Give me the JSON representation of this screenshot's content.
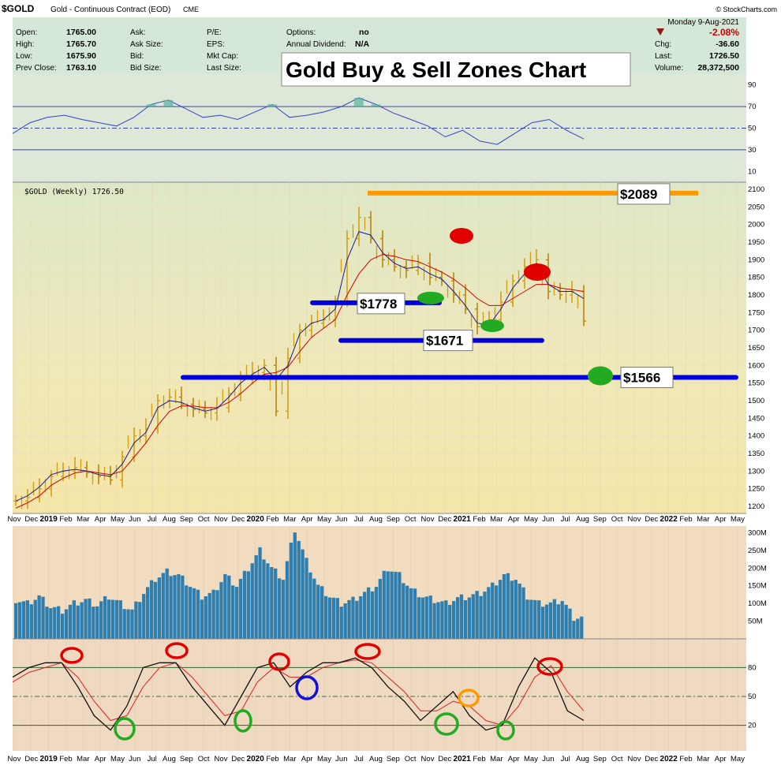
{
  "header": {
    "symbol": "$GOLD",
    "name": "Gold - Continuous Contract (EOD)",
    "exchange": "CME",
    "watermark": "© StockCharts.com",
    "date": "Monday  9-Aug-2021",
    "quote": [
      {
        "label": "Open:",
        "value": "1765.00"
      },
      {
        "label": "High:",
        "value": "1765.70"
      },
      {
        "label": "Low:",
        "value": "1675.90"
      },
      {
        "label": "Prev Close:",
        "value": "1763.10"
      }
    ],
    "quote2": [
      {
        "label": "Ask:"
      },
      {
        "label": "Ask Size:"
      },
      {
        "label": "Bid:"
      },
      {
        "label": "Bid Size:"
      }
    ],
    "quote3": [
      {
        "label": "P/E:"
      },
      {
        "label": "EPS:"
      },
      {
        "label": "Mkt Cap:"
      },
      {
        "label": "Last Size:"
      }
    ],
    "quote4": [
      {
        "label": "Options:",
        "value": "no"
      },
      {
        "label": "Annual Dividend:",
        "value": "N/A"
      }
    ],
    "change_pct": "-2.08%",
    "chg_label": "Chg:",
    "chg_value": "-36.60",
    "last_label": "Last:",
    "last_value": "1726.50",
    "volume_label": "Volume:",
    "volume_value": "28,372,500"
  },
  "overlay_title": "Gold Buy & Sell Zones Chart",
  "price_legend": "$GOLD (Weekly) 1726.50",
  "colors": {
    "up": "#d4a017",
    "down": "#b8860b",
    "ma_fast": "#1a1a8c",
    "ma_slow": "#d40000",
    "buy": "#22aa22",
    "sell": "#e00000",
    "zone": "#0000dd",
    "top": "#ff9900",
    "volume": "#2e7fb0"
  },
  "chart_data": [
    {
      "type": "line",
      "panel": "rsi",
      "ylim": [
        0,
        100
      ],
      "y_ticks": [
        "90",
        "70",
        "50",
        "30",
        "10"
      ],
      "reference_levels": [
        70,
        50,
        30
      ],
      "x": [
        "Nov 2018",
        "Dec",
        "Jan 2019",
        "Feb",
        "Mar",
        "Apr",
        "May",
        "Jun",
        "Jul",
        "Aug",
        "Sep",
        "Oct",
        "Nov",
        "Dec",
        "Jan 2020",
        "Feb",
        "Mar",
        "Apr",
        "May",
        "Jun",
        "Jul",
        "Aug",
        "Sep",
        "Oct",
        "Nov",
        "Dec",
        "Jan 2021",
        "Feb",
        "Mar",
        "Apr",
        "May",
        "Jun",
        "Jul",
        "Aug"
      ],
      "values": [
        45,
        55,
        60,
        62,
        58,
        55,
        52,
        60,
        72,
        76,
        68,
        60,
        62,
        58,
        65,
        72,
        60,
        62,
        65,
        70,
        78,
        72,
        64,
        58,
        52,
        42,
        48,
        38,
        35,
        45,
        55,
        58,
        48,
        40
      ]
    },
    {
      "type": "candlestick",
      "panel": "price",
      "title": "$GOLD (Weekly) 1726.50",
      "ylim": [
        1180,
        2110
      ],
      "y_ticks": [
        "2100",
        "2050",
        "2000",
        "1950",
        "1900",
        "1850",
        "1800",
        "1750",
        "1700",
        "1650",
        "1600",
        "1550",
        "1500",
        "1450",
        "1400",
        "1350",
        "1300",
        "1250",
        "1200"
      ],
      "x_ticks": [
        "Nov",
        "Dec",
        "2019",
        "Feb",
        "Mar",
        "Apr",
        "May",
        "Jun",
        "Jul",
        "Aug",
        "Sep",
        "Oct",
        "Nov",
        "Dec",
        "2020",
        "Feb",
        "Mar",
        "Apr",
        "May",
        "Jun",
        "Jul",
        "Aug",
        "Sep",
        "Oct",
        "Nov",
        "Dec",
        "2021",
        "Feb",
        "Mar",
        "Apr",
        "May",
        "Jun",
        "Jul",
        "Aug",
        "Sep",
        "Oct",
        "Nov",
        "Dec",
        "2022",
        "Feb",
        "Mar",
        "Apr",
        "May"
      ],
      "x_ticks_bold": [
        "2019",
        "2020",
        "2021",
        "2022"
      ],
      "close": [
        1215,
        1225,
        1250,
        1285,
        1300,
        1310,
        1295,
        1285,
        1275,
        1340,
        1400,
        1420,
        1500,
        1510,
        1490,
        1475,
        1465,
        1480,
        1520,
        1560,
        1580,
        1600,
        1470,
        1620,
        1700,
        1720,
        1730,
        1780,
        1960,
        2020,
        1960,
        1900,
        1880,
        1870,
        1890,
        1850,
        1840,
        1800,
        1760,
        1710,
        1730,
        1780,
        1840,
        1880,
        1900,
        1810,
        1800,
        1810,
        1726
      ],
      "sma_fast": [
        1215,
        1230,
        1255,
        1290,
        1300,
        1305,
        1300,
        1290,
        1285,
        1320,
        1380,
        1410,
        1480,
        1500,
        1495,
        1480,
        1470,
        1478,
        1510,
        1550,
        1575,
        1595,
        1560,
        1600,
        1690,
        1720,
        1730,
        1760,
        1900,
        1980,
        1970,
        1920,
        1890,
        1875,
        1880,
        1860,
        1845,
        1810,
        1770,
        1720,
        1715,
        1760,
        1820,
        1860,
        1890,
        1830,
        1810,
        1810,
        1790
      ],
      "sma_slow": [
        1195,
        1210,
        1230,
        1260,
        1280,
        1295,
        1300,
        1295,
        1290,
        1300,
        1340,
        1380,
        1430,
        1470,
        1485,
        1485,
        1480,
        1480,
        1495,
        1520,
        1550,
        1575,
        1580,
        1595,
        1640,
        1680,
        1705,
        1730,
        1800,
        1860,
        1900,
        1915,
        1910,
        1900,
        1895,
        1880,
        1865,
        1845,
        1820,
        1790,
        1770,
        1770,
        1790,
        1810,
        1830,
        1830,
        1820,
        1815,
        1810
      ],
      "levels": [
        {
          "label": "$2089",
          "value": 2089
        },
        {
          "label": "$1778",
          "value": 1778
        },
        {
          "label": "$1671",
          "value": 1671
        },
        {
          "label": "$1566",
          "value": 1566
        }
      ]
    },
    {
      "type": "bar",
      "panel": "volume",
      "ylim": [
        0,
        310
      ],
      "y_ticks": [
        "300M",
        "250M",
        "200M",
        "150M",
        "100M",
        "50M"
      ],
      "values": [
        110,
        100,
        120,
        90,
        80,
        100,
        110,
        95,
        120,
        100,
        80,
        130,
        170,
        190,
        180,
        150,
        120,
        130,
        180,
        150,
        200,
        250,
        200,
        170,
        310,
        220,
        150,
        120,
        100,
        110,
        130,
        150,
        200,
        180,
        140,
        120,
        110,
        100,
        115,
        120,
        130,
        150,
        180,
        170,
        120,
        100,
        100,
        110,
        60
      ]
    },
    {
      "type": "line",
      "panel": "stochastic",
      "ylim": [
        0,
        100
      ],
      "y_ticks": [
        "80",
        "50",
        "20"
      ],
      "reference_levels": [
        80,
        50,
        20
      ],
      "k": [
        70,
        80,
        85,
        85,
        60,
        30,
        15,
        40,
        80,
        85,
        85,
        60,
        40,
        20,
        50,
        80,
        85,
        60,
        75,
        85,
        85,
        90,
        80,
        60,
        45,
        25,
        40,
        55,
        30,
        15,
        20,
        60,
        90,
        75,
        35,
        25
      ],
      "d": [
        65,
        75,
        80,
        85,
        70,
        45,
        25,
        30,
        60,
        80,
        85,
        70,
        50,
        30,
        35,
        65,
        80,
        70,
        70,
        80,
        85,
        88,
        85,
        70,
        55,
        35,
        35,
        45,
        40,
        25,
        20,
        40,
        70,
        82,
        55,
        35
      ]
    }
  ]
}
